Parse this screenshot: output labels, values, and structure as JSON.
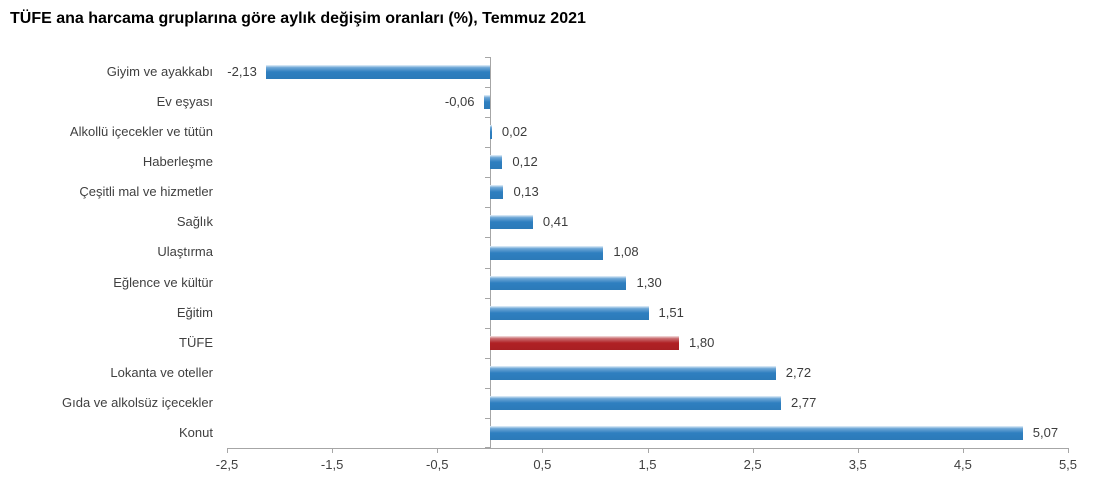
{
  "chart_data": {
    "type": "bar",
    "orientation": "horizontal",
    "title": "TÜFE ana harcama gruplarına göre aylık değişim oranları (%), Temmuz 2021",
    "categories": [
      "Giyim ve ayakkabı",
      "Ev eşyası",
      "Alkollü içecekler ve tütün",
      "Haberleşme",
      "Çeşitli mal ve hizmetler",
      "Sağlık",
      "Ulaştırma",
      "Eğlence ve kültür",
      "Eğitim",
      "TÜFE",
      "Lokanta ve oteller",
      "Gıda ve alkolsüz içecekler",
      "Konut"
    ],
    "values": [
      -2.13,
      -0.06,
      0.02,
      0.12,
      0.13,
      0.41,
      1.08,
      1.3,
      1.51,
      1.8,
      2.72,
      2.77,
      5.07
    ],
    "value_labels": [
      "-2,13",
      "-0,06",
      "0,02",
      "0,12",
      "0,13",
      "0,41",
      "1,08",
      "1,30",
      "1,51",
      "1,80",
      "2,72",
      "2,77",
      "5,07"
    ],
    "highlight_index": 9,
    "colors": {
      "bar": "#2E7FC0",
      "highlight": "#B02125",
      "axis": "#A6A6A6",
      "text": "#404040",
      "title": "#000000"
    },
    "xlim": [
      -2.5,
      5.5
    ],
    "x_tick_values": [
      -2.5,
      -1.5,
      -0.5,
      0.5,
      1.5,
      2.5,
      3.5,
      4.5,
      5.5
    ],
    "x_tick_labels": [
      "-2,5",
      "-1,5",
      "-0,5",
      "0,5",
      "1,5",
      "2,5",
      "3,5",
      "4,5",
      "5,5"
    ],
    "xlabel": "",
    "ylabel": "",
    "grid": false,
    "legend": false
  }
}
